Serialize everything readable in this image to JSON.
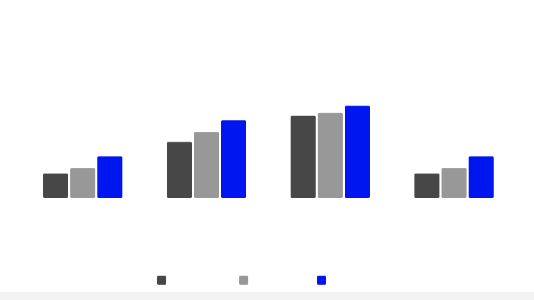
{
  "chart_data": {
    "type": "bar",
    "title": "",
    "xlabel": "",
    "ylabel": "",
    "categories": [
      "",
      "",
      "",
      ""
    ],
    "ylim": [
      0,
      100
    ],
    "grid": false,
    "legend_position": "bottom",
    "series": [
      {
        "color": "#474747",
        "values": [
          27,
          62,
          91,
          27
        ]
      },
      {
        "color": "#989898",
        "values": [
          33,
          73,
          94,
          33
        ]
      },
      {
        "color": "#0016ee",
        "values": [
          46,
          86,
          102,
          46
        ]
      }
    ]
  }
}
